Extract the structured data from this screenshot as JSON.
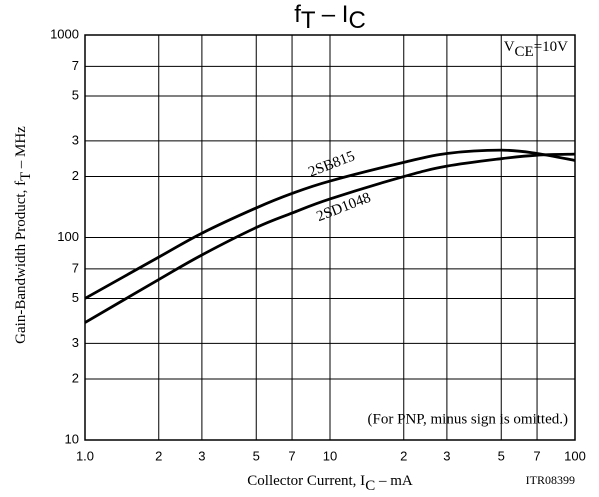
{
  "chart_data": {
    "type": "line",
    "title": [
      "f",
      "T",
      " – I",
      "C"
    ],
    "y_label": [
      "Gain-Bandwidth Product, f",
      "T",
      " – MHz"
    ],
    "x_label": [
      "Collector Current, I",
      "C",
      " – mA"
    ],
    "annotations": {
      "condition": [
        "V",
        "CE",
        "=10V"
      ],
      "note": "(For PNP, minus sign is omitted.)",
      "code": "ITR08399"
    },
    "x": [
      1,
      2,
      3,
      5,
      7,
      10,
      20,
      30,
      50,
      70,
      100
    ],
    "series": [
      {
        "name": "2SB815",
        "color": "#000000",
        "values": [
          50,
          80,
          105,
          140,
          165,
          190,
          235,
          260,
          270,
          260,
          240
        ]
      },
      {
        "name": "2SD1048",
        "color": "#000000",
        "values": [
          38,
          62,
          82,
          112,
          132,
          155,
          200,
          225,
          245,
          255,
          258
        ]
      }
    ],
    "xscale": "log",
    "yscale": "log",
    "xlim": [
      1,
      100
    ],
    "ylim": [
      10,
      1000
    ],
    "xticks": [
      {
        "value": 1,
        "label": "1.0"
      },
      2,
      3,
      5,
      7,
      10,
      {
        "value": 20,
        "label": "2"
      },
      {
        "value": 30,
        "label": "3"
      },
      {
        "value": 50,
        "label": "5"
      },
      {
        "value": 70,
        "label": "7"
      },
      100
    ],
    "yticks": [
      10,
      {
        "value": 20,
        "label": "2"
      },
      {
        "value": 30,
        "label": "3"
      },
      {
        "value": 50,
        "label": "5"
      },
      {
        "value": 70,
        "label": "7"
      },
      100,
      {
        "value": 200,
        "label": "2"
      },
      {
        "value": 300,
        "label": "3"
      },
      {
        "value": 500,
        "label": "5"
      },
      {
        "value": 700,
        "label": "7"
      },
      1000
    ],
    "grid": true
  }
}
